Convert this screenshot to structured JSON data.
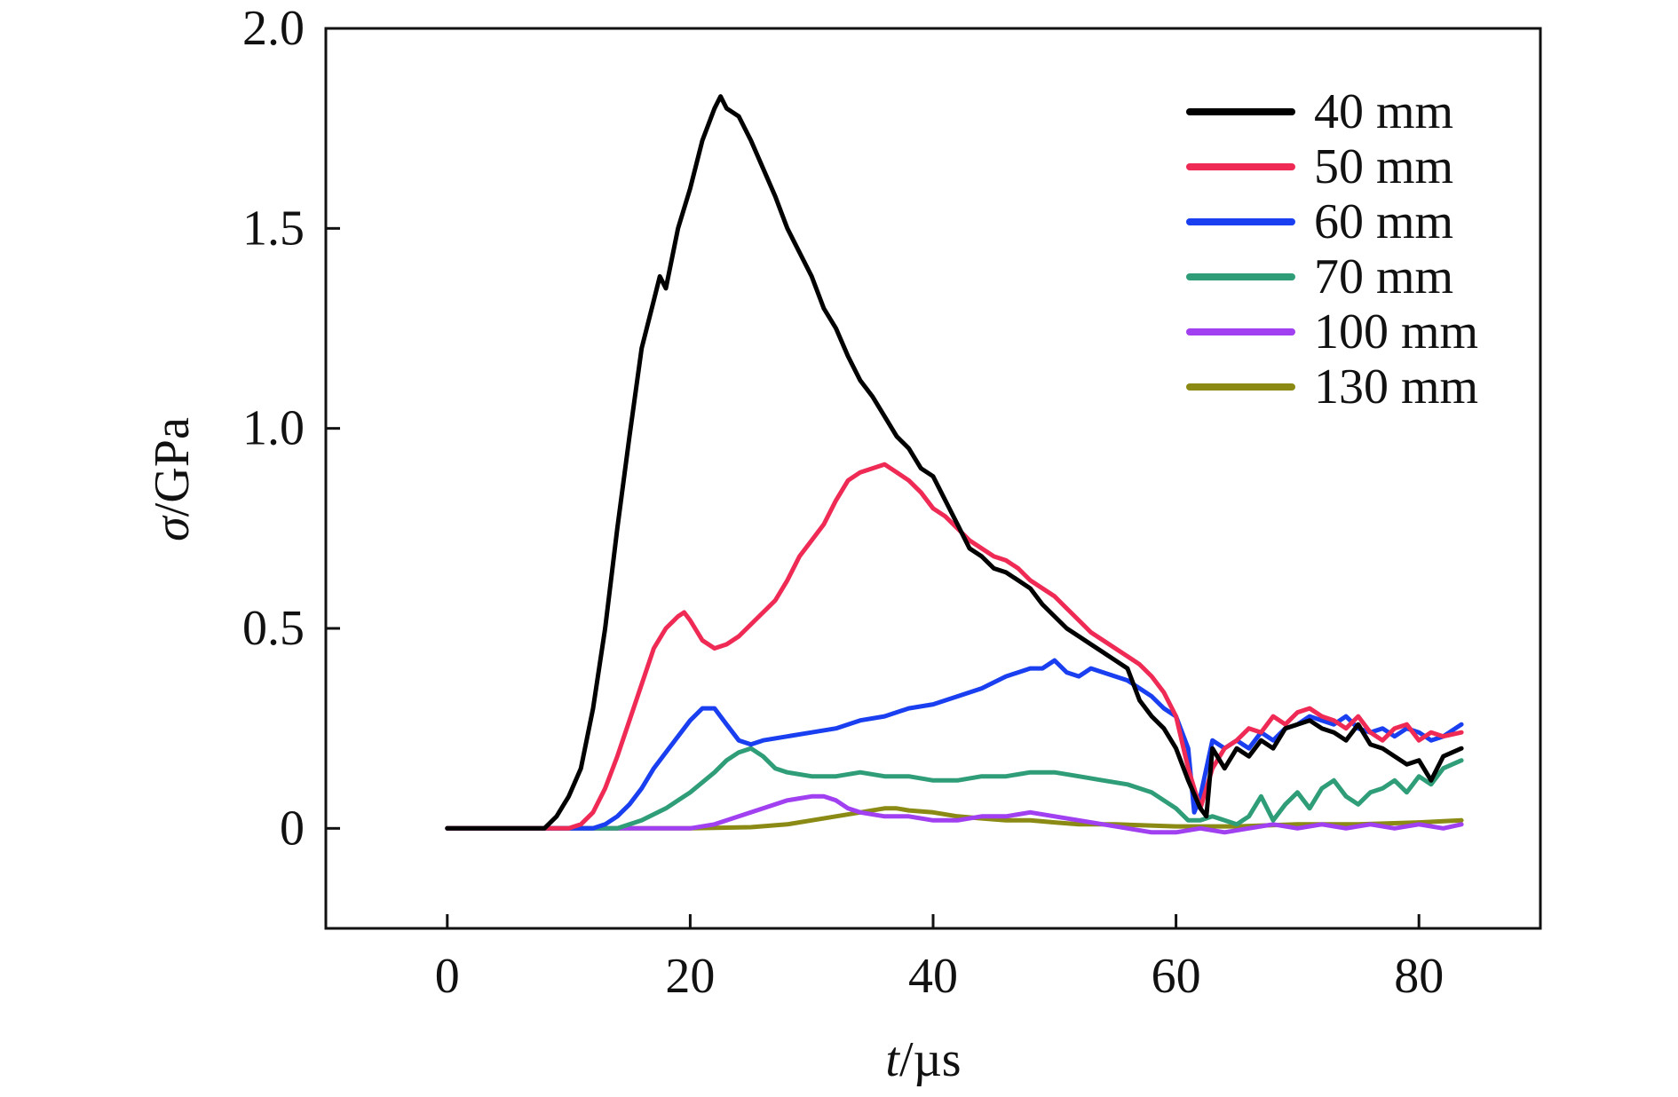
{
  "chart_data": {
    "type": "line",
    "xlabel_var": "t",
    "xlabel_unit": "/µs",
    "ylabel_var": "σ",
    "ylabel_unit": "/GPa",
    "xlim": [
      -10,
      90
    ],
    "ylim": [
      -0.25,
      2.0
    ],
    "xticks": [
      0,
      20,
      40,
      60,
      80
    ],
    "yticks": [
      0,
      0.5,
      1.0,
      1.5,
      2.0
    ],
    "xtick_labels": [
      "0",
      "20",
      "40",
      "60",
      "80"
    ],
    "ytick_labels": [
      "0",
      "0.5",
      "1.0",
      "1.5",
      "2.0"
    ],
    "grid": false,
    "legend_position": "top-right",
    "series": [
      {
        "name": "40 mm",
        "color": "#000000",
        "x": [
          0,
          8,
          9,
          10,
          11,
          12,
          13,
          14,
          15,
          16,
          17,
          17.5,
          18,
          19,
          20,
          21,
          22,
          22.5,
          23,
          24,
          25,
          26,
          27,
          28,
          29,
          30,
          31,
          32,
          33,
          34,
          35,
          36,
          37,
          38,
          39,
          40,
          41,
          42,
          43,
          44,
          45,
          46,
          47,
          48,
          49,
          50,
          51,
          52,
          53,
          54,
          55,
          56,
          57,
          58,
          59,
          60,
          61,
          62,
          62.5,
          63,
          64,
          65,
          66,
          67,
          68,
          69,
          70,
          71,
          72,
          73,
          74,
          75,
          76,
          77,
          78,
          79,
          80,
          81,
          82,
          83.5
        ],
        "y": [
          0,
          0,
          0.03,
          0.08,
          0.15,
          0.3,
          0.5,
          0.75,
          0.98,
          1.2,
          1.32,
          1.38,
          1.35,
          1.5,
          1.6,
          1.72,
          1.8,
          1.83,
          1.8,
          1.78,
          1.72,
          1.65,
          1.58,
          1.5,
          1.44,
          1.38,
          1.3,
          1.25,
          1.18,
          1.12,
          1.08,
          1.03,
          0.98,
          0.95,
          0.9,
          0.88,
          0.82,
          0.76,
          0.7,
          0.68,
          0.65,
          0.64,
          0.62,
          0.6,
          0.56,
          0.53,
          0.5,
          0.48,
          0.46,
          0.44,
          0.42,
          0.4,
          0.32,
          0.28,
          0.25,
          0.2,
          0.12,
          0.05,
          0.03,
          0.2,
          0.15,
          0.2,
          0.18,
          0.22,
          0.2,
          0.25,
          0.26,
          0.27,
          0.25,
          0.24,
          0.22,
          0.26,
          0.21,
          0.2,
          0.18,
          0.16,
          0.17,
          0.12,
          0.18,
          0.2
        ]
      },
      {
        "name": "50 mm",
        "color": "#ee2a55",
        "x": [
          0,
          10,
          11,
          12,
          13,
          14,
          15,
          16,
          17,
          18,
          19,
          19.5,
          20,
          21,
          22,
          23,
          24,
          25,
          26,
          27,
          28,
          29,
          30,
          31,
          32,
          33,
          34,
          35,
          36,
          37,
          38,
          39,
          40,
          41,
          42,
          43,
          44,
          45,
          46,
          47,
          48,
          49,
          50,
          51,
          52,
          53,
          54,
          55,
          56,
          57,
          58,
          59,
          60,
          61,
          62,
          63,
          64,
          65,
          66,
          67,
          68,
          69,
          70,
          71,
          72,
          73,
          74,
          75,
          76,
          77,
          78,
          79,
          80,
          81,
          82,
          83.5
        ],
        "y": [
          0,
          0,
          0.01,
          0.04,
          0.1,
          0.18,
          0.27,
          0.36,
          0.45,
          0.5,
          0.53,
          0.54,
          0.52,
          0.47,
          0.45,
          0.46,
          0.48,
          0.51,
          0.54,
          0.57,
          0.62,
          0.68,
          0.72,
          0.76,
          0.82,
          0.87,
          0.89,
          0.9,
          0.91,
          0.89,
          0.87,
          0.84,
          0.8,
          0.78,
          0.75,
          0.72,
          0.7,
          0.68,
          0.67,
          0.65,
          0.62,
          0.6,
          0.58,
          0.55,
          0.52,
          0.49,
          0.47,
          0.45,
          0.43,
          0.41,
          0.38,
          0.34,
          0.28,
          0.15,
          0.05,
          0.15,
          0.2,
          0.22,
          0.25,
          0.24,
          0.28,
          0.26,
          0.29,
          0.3,
          0.28,
          0.27,
          0.25,
          0.28,
          0.24,
          0.22,
          0.25,
          0.26,
          0.22,
          0.24,
          0.23,
          0.24
        ]
      },
      {
        "name": "60 mm",
        "color": "#1a3ff0",
        "x": [
          0,
          12,
          13,
          14,
          15,
          16,
          17,
          18,
          19,
          20,
          21,
          22,
          23,
          24,
          25,
          26,
          28,
          30,
          32,
          34,
          36,
          38,
          40,
          42,
          44,
          46,
          47,
          48,
          49,
          50,
          51,
          52,
          53,
          54,
          55,
          56,
          57,
          58,
          59,
          60,
          61,
          61.5,
          62,
          63,
          64,
          65,
          66,
          67,
          68,
          69,
          70,
          71,
          72,
          73,
          74,
          75,
          76,
          77,
          78,
          79,
          80,
          81,
          82,
          83.5
        ],
        "y": [
          0,
          0,
          0.01,
          0.03,
          0.06,
          0.1,
          0.15,
          0.19,
          0.23,
          0.27,
          0.3,
          0.3,
          0.26,
          0.22,
          0.21,
          0.22,
          0.23,
          0.24,
          0.25,
          0.27,
          0.28,
          0.3,
          0.31,
          0.33,
          0.35,
          0.38,
          0.39,
          0.4,
          0.4,
          0.42,
          0.39,
          0.38,
          0.4,
          0.39,
          0.38,
          0.37,
          0.35,
          0.33,
          0.3,
          0.28,
          0.2,
          0.04,
          0.08,
          0.22,
          0.2,
          0.22,
          0.2,
          0.24,
          0.22,
          0.25,
          0.26,
          0.28,
          0.27,
          0.26,
          0.28,
          0.25,
          0.24,
          0.25,
          0.23,
          0.25,
          0.24,
          0.22,
          0.23,
          0.26
        ]
      },
      {
        "name": "70 mm",
        "color": "#2f9e78",
        "x": [
          0,
          14,
          16,
          18,
          20,
          22,
          23,
          24,
          25,
          26,
          27,
          28,
          30,
          32,
          34,
          36,
          38,
          40,
          42,
          44,
          46,
          48,
          50,
          52,
          54,
          56,
          58,
          59,
          60,
          61,
          62,
          63,
          64,
          65,
          66,
          67,
          68,
          69,
          70,
          71,
          72,
          73,
          74,
          75,
          76,
          77,
          78,
          79,
          80,
          81,
          82,
          83.5
        ],
        "y": [
          0,
          0,
          0.02,
          0.05,
          0.09,
          0.14,
          0.17,
          0.19,
          0.2,
          0.18,
          0.15,
          0.14,
          0.13,
          0.13,
          0.14,
          0.13,
          0.13,
          0.12,
          0.12,
          0.13,
          0.13,
          0.14,
          0.14,
          0.13,
          0.12,
          0.11,
          0.09,
          0.07,
          0.05,
          0.02,
          0.02,
          0.03,
          0.02,
          0.01,
          0.03,
          0.08,
          0.02,
          0.06,
          0.09,
          0.05,
          0.1,
          0.12,
          0.08,
          0.06,
          0.09,
          0.1,
          0.12,
          0.09,
          0.13,
          0.11,
          0.15,
          0.17
        ]
      },
      {
        "name": "100 mm",
        "color": "#a040f0",
        "x": [
          0,
          20,
          22,
          24,
          26,
          28,
          30,
          31,
          32,
          33,
          34,
          36,
          38,
          40,
          42,
          44,
          46,
          48,
          50,
          52,
          54,
          56,
          58,
          60,
          62,
          64,
          66,
          68,
          70,
          72,
          74,
          76,
          78,
          80,
          82,
          83.5
        ],
        "y": [
          0,
          0,
          0.01,
          0.03,
          0.05,
          0.07,
          0.08,
          0.08,
          0.07,
          0.05,
          0.04,
          0.03,
          0.03,
          0.02,
          0.02,
          0.03,
          0.03,
          0.04,
          0.03,
          0.02,
          0.01,
          0.0,
          -0.01,
          -0.01,
          0.0,
          -0.01,
          0.0,
          0.01,
          0.0,
          0.01,
          0.0,
          0.01,
          0.0,
          0.01,
          0.0,
          0.01
        ]
      },
      {
        "name": "130 mm",
        "color": "#8a8a14",
        "x": [
          0,
          20,
          25,
          28,
          30,
          32,
          34,
          36,
          37,
          38,
          40,
          42,
          44,
          46,
          48,
          50,
          52,
          55,
          60,
          65,
          70,
          75,
          80,
          83.5
        ],
        "y": [
          0,
          0,
          0.003,
          0.01,
          0.02,
          0.03,
          0.04,
          0.05,
          0.05,
          0.045,
          0.04,
          0.03,
          0.025,
          0.02,
          0.02,
          0.015,
          0.01,
          0.01,
          0.005,
          0.005,
          0.01,
          0.01,
          0.015,
          0.02
        ]
      }
    ]
  }
}
